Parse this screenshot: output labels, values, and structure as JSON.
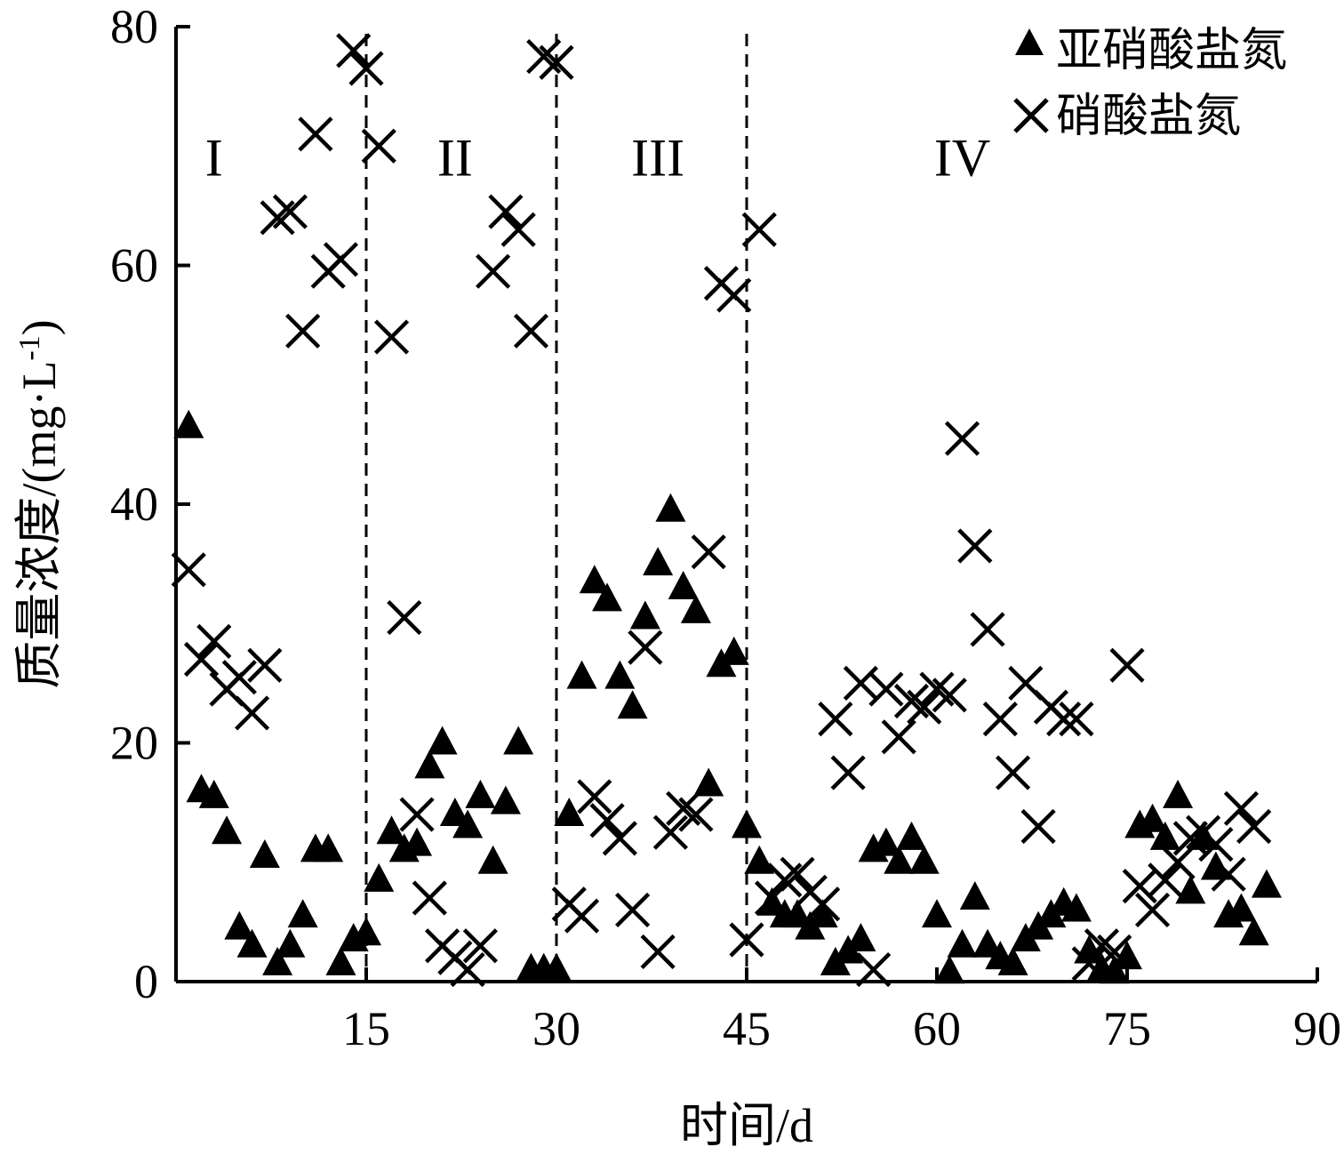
{
  "chart_data": {
    "type": "scatter",
    "title": "",
    "xlabel": "时间/d",
    "ylabel": "质量浓度/(mg·L",
    "ylabel_sup": "-1",
    "ylabel_close": ")",
    "xlim": [
      0,
      90
    ],
    "ylim": [
      0,
      80
    ],
    "xticks": [
      15,
      30,
      45,
      60,
      75,
      90
    ],
    "yticks": [
      0,
      20,
      40,
      60,
      80
    ],
    "grid": false,
    "legend_position": "top-right",
    "phase_boundaries": [
      15,
      30,
      45
    ],
    "phases": [
      {
        "label": "I",
        "x": 3,
        "y": 69
      },
      {
        "label": "II",
        "x": 22,
        "y": 69
      },
      {
        "label": "III",
        "x": 38,
        "y": 69
      },
      {
        "label": "IV",
        "x": 62,
        "y": 69
      }
    ],
    "series": [
      {
        "name": "亚硝酸盐氮",
        "marker": "triangle",
        "points": [
          [
            1,
            46.5
          ],
          [
            2,
            16
          ],
          [
            3,
            15.5
          ],
          [
            4,
            12.5
          ],
          [
            5,
            4.5
          ],
          [
            6,
            3
          ],
          [
            7,
            10.5
          ],
          [
            8,
            1.5
          ],
          [
            9,
            3
          ],
          [
            10,
            5.5
          ],
          [
            11,
            11
          ],
          [
            12,
            11
          ],
          [
            13,
            1.5
          ],
          [
            14,
            3.5
          ],
          [
            15,
            4
          ],
          [
            16,
            8.5
          ],
          [
            17,
            12.5
          ],
          [
            18,
            11
          ],
          [
            19,
            11.5
          ],
          [
            20,
            18
          ],
          [
            21,
            20
          ],
          [
            22,
            14
          ],
          [
            23,
            13
          ],
          [
            24,
            15.5
          ],
          [
            25,
            10
          ],
          [
            26,
            15
          ],
          [
            27,
            20
          ],
          [
            28,
            1
          ],
          [
            29,
            1
          ],
          [
            30,
            1
          ],
          [
            31,
            14
          ],
          [
            32,
            25.5
          ],
          [
            33,
            33.5
          ],
          [
            34,
            32
          ],
          [
            35,
            25.5
          ],
          [
            36,
            23
          ],
          [
            37,
            30.5
          ],
          [
            38,
            35
          ],
          [
            39,
            39.5
          ],
          [
            40,
            33
          ],
          [
            41,
            31
          ],
          [
            42,
            16.5
          ],
          [
            43,
            26.5
          ],
          [
            44,
            27.5
          ],
          [
            45,
            13
          ],
          [
            46,
            10
          ],
          [
            47,
            6.5
          ],
          [
            48,
            5.5
          ],
          [
            49,
            5.5
          ],
          [
            50,
            4.5
          ],
          [
            51,
            5.5
          ],
          [
            52,
            1.5
          ],
          [
            53,
            2.5
          ],
          [
            54,
            3.5
          ],
          [
            55,
            11
          ],
          [
            56,
            11.5
          ],
          [
            57,
            10
          ],
          [
            58,
            12
          ],
          [
            59,
            10
          ],
          [
            60,
            5.5
          ],
          [
            61,
            0.8
          ],
          [
            62,
            3
          ],
          [
            63,
            7
          ],
          [
            64,
            3
          ],
          [
            65,
            2
          ],
          [
            66,
            1.5
          ],
          [
            67,
            3.5
          ],
          [
            68,
            4.5
          ],
          [
            69,
            5.5
          ],
          [
            70,
            6.5
          ],
          [
            71,
            6
          ],
          [
            72,
            2.5
          ],
          [
            73,
            1
          ],
          [
            74,
            0.8
          ],
          [
            75,
            2
          ],
          [
            76,
            13
          ],
          [
            77,
            13.5
          ],
          [
            78,
            12
          ],
          [
            79,
            15.5
          ],
          [
            80,
            7.5
          ],
          [
            81,
            12
          ],
          [
            82,
            9.5
          ],
          [
            83,
            5.5
          ],
          [
            84,
            6
          ],
          [
            85,
            4
          ],
          [
            86,
            8
          ]
        ]
      },
      {
        "name": "硝酸盐氮",
        "marker": "cross",
        "points": [
          [
            1,
            34.5
          ],
          [
            2,
            27
          ],
          [
            3,
            28.5
          ],
          [
            4,
            24.5
          ],
          [
            5,
            25.5
          ],
          [
            6,
            22.5
          ],
          [
            7,
            26.5
          ],
          [
            8,
            64
          ],
          [
            9,
            64.5
          ],
          [
            10,
            54.5
          ],
          [
            11,
            71
          ],
          [
            12,
            59.5
          ],
          [
            13,
            60.5
          ],
          [
            14,
            78
          ],
          [
            15,
            76.5
          ],
          [
            16,
            70
          ],
          [
            17,
            54
          ],
          [
            18,
            30.5
          ],
          [
            19,
            14
          ],
          [
            20,
            7
          ],
          [
            21,
            3
          ],
          [
            22,
            2
          ],
          [
            23,
            1
          ],
          [
            24,
            3
          ],
          [
            25,
            59.5
          ],
          [
            26,
            64.5
          ],
          [
            27,
            63
          ],
          [
            28,
            54.5
          ],
          [
            29,
            77.5
          ],
          [
            30,
            77
          ],
          [
            31,
            6.5
          ],
          [
            32,
            5.5
          ],
          [
            33,
            15.5
          ],
          [
            34,
            13.5
          ],
          [
            35,
            12
          ],
          [
            36,
            6
          ],
          [
            37,
            28
          ],
          [
            38,
            2.5
          ],
          [
            39,
            12.5
          ],
          [
            40,
            14.5
          ],
          [
            41,
            14
          ],
          [
            42,
            36
          ],
          [
            43,
            58.5
          ],
          [
            44,
            57.5
          ],
          [
            45,
            3.5
          ],
          [
            46,
            63
          ],
          [
            47,
            7
          ],
          [
            48,
            8.5
          ],
          [
            49,
            9
          ],
          [
            50,
            7.5
          ],
          [
            51,
            6.5
          ],
          [
            52,
            22
          ],
          [
            53,
            17.5
          ],
          [
            54,
            25
          ],
          [
            55,
            1
          ],
          [
            56,
            24.5
          ],
          [
            57,
            20.5
          ],
          [
            58,
            23.5
          ],
          [
            59,
            23
          ],
          [
            60,
            24.5
          ],
          [
            61,
            24
          ],
          [
            62,
            45.5
          ],
          [
            63,
            36.5
          ],
          [
            64,
            29.5
          ],
          [
            65,
            22
          ],
          [
            66,
            17.5
          ],
          [
            67,
            25
          ],
          [
            68,
            13
          ],
          [
            69,
            23
          ],
          [
            70,
            22
          ],
          [
            71,
            22
          ],
          [
            72,
            1.5
          ],
          [
            73,
            3
          ],
          [
            74,
            2.5
          ],
          [
            75,
            26.5
          ],
          [
            76,
            8
          ],
          [
            77,
            6
          ],
          [
            78,
            8.5
          ],
          [
            79,
            10
          ],
          [
            80,
            12
          ],
          [
            81,
            12.5
          ],
          [
            82,
            11.5
          ],
          [
            83,
            9
          ],
          [
            84,
            14.5
          ],
          [
            85,
            13
          ]
        ]
      }
    ]
  }
}
